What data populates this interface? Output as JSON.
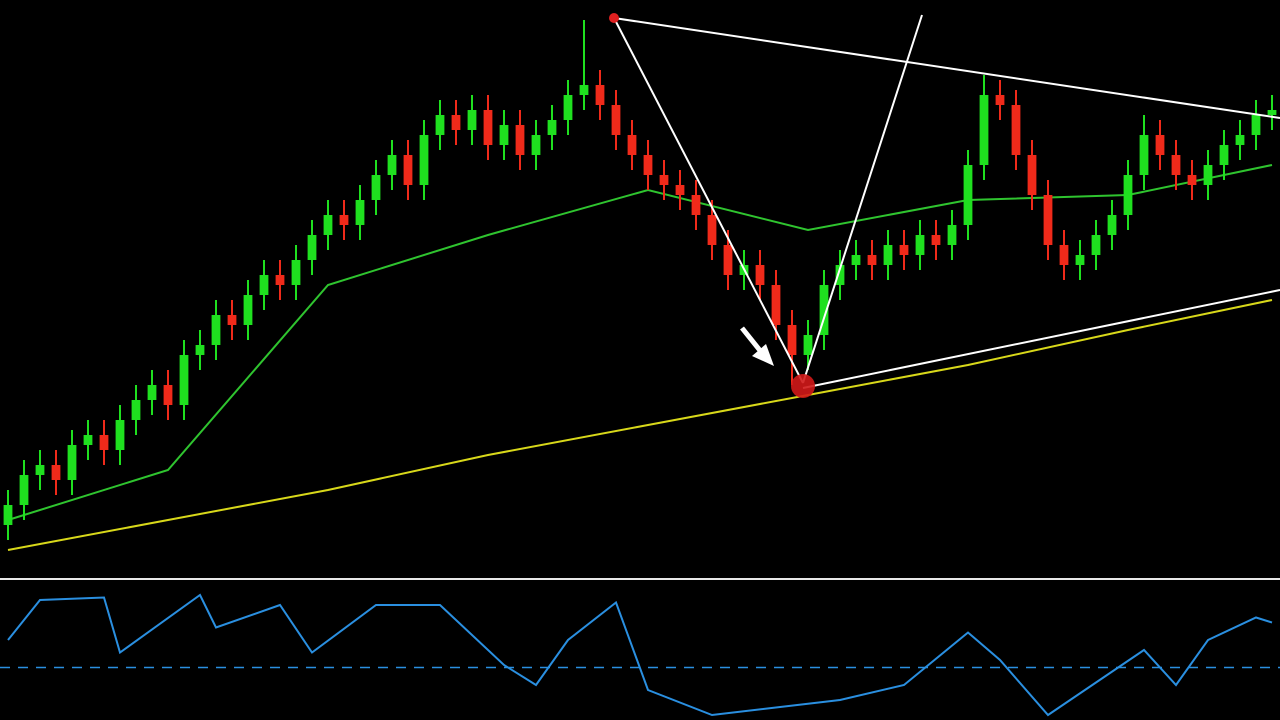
{
  "chart_data": [
    {
      "type": "candlestick",
      "xlim": [
        -0.5,
        79.5
      ],
      "ylim": [
        0,
        115
      ],
      "up_color": "#1fe01f",
      "down_color": "#f02a1a",
      "open": [
        10,
        14,
        20,
        22,
        19,
        26,
        28,
        25,
        31,
        35,
        38,
        34,
        44,
        46,
        52,
        50,
        56,
        60,
        58,
        63,
        68,
        72,
        70,
        75,
        80,
        84,
        78,
        88,
        92,
        89,
        93,
        86,
        90,
        84,
        88,
        91,
        96,
        98,
        94,
        88,
        84,
        80,
        78,
        76,
        72,
        66,
        60,
        62,
        58,
        50,
        44,
        48,
        58,
        62,
        64,
        62,
        66,
        64,
        68,
        66,
        70,
        82,
        96,
        94,
        84,
        76,
        66,
        62,
        64,
        68,
        72,
        80,
        88,
        84,
        80,
        78,
        82,
        86,
        88,
        92
      ],
      "high": [
        17,
        23,
        25,
        25,
        29,
        31,
        31,
        34,
        38,
        41,
        41,
        47,
        49,
        55,
        55,
        59,
        63,
        63,
        66,
        71,
        75,
        75,
        78,
        83,
        87,
        87,
        91,
        95,
        95,
        96,
        96,
        93,
        93,
        91,
        94,
        99,
        111,
        101,
        97,
        91,
        87,
        83,
        81,
        79,
        75,
        69,
        65,
        65,
        61,
        53,
        51,
        61,
        65,
        67,
        67,
        69,
        69,
        71,
        71,
        73,
        85,
        100,
        99,
        97,
        87,
        79,
        69,
        67,
        71,
        75,
        83,
        92,
        91,
        87,
        83,
        85,
        89,
        91,
        95,
        96
      ],
      "low": [
        7,
        11,
        17,
        16,
        16,
        23,
        22,
        22,
        28,
        32,
        31,
        31,
        41,
        43,
        47,
        47,
        53,
        55,
        55,
        60,
        65,
        67,
        67,
        72,
        77,
        75,
        75,
        85,
        86,
        86,
        83,
        83,
        81,
        81,
        85,
        88,
        93,
        91,
        85,
        81,
        77,
        75,
        73,
        69,
        63,
        57,
        57,
        55,
        47,
        38,
        41,
        45,
        55,
        59,
        59,
        59,
        61,
        61,
        63,
        63,
        67,
        79,
        91,
        81,
        73,
        63,
        59,
        59,
        61,
        65,
        69,
        77,
        81,
        77,
        75,
        75,
        79,
        83,
        85,
        89
      ],
      "close": [
        14,
        20,
        22,
        19,
        26,
        28,
        25,
        31,
        35,
        38,
        34,
        44,
        46,
        52,
        50,
        56,
        60,
        58,
        63,
        68,
        72,
        70,
        75,
        80,
        84,
        78,
        88,
        92,
        89,
        93,
        86,
        90,
        84,
        88,
        91,
        96,
        98,
        94,
        88,
        84,
        80,
        78,
        76,
        72,
        66,
        60,
        62,
        58,
        50,
        44,
        48,
        58,
        62,
        64,
        62,
        66,
        64,
        68,
        66,
        70,
        82,
        96,
        94,
        84,
        76,
        66,
        62,
        64,
        68,
        72,
        80,
        88,
        84,
        80,
        78,
        82,
        86,
        88,
        92,
        93
      ],
      "series": [
        {
          "color": "#2fc42f",
          "x": [
            0,
            10,
            20,
            30,
            40,
            50,
            60,
            70,
            79
          ],
          "values": [
            11,
            21,
            58,
            68,
            77,
            69,
            75,
            76,
            82
          ]
        },
        {
          "color": "#d8d81a",
          "x": [
            0,
            10,
            20,
            30,
            40,
            50,
            60,
            70,
            79
          ],
          "values": [
            5,
            11,
            17,
            24,
            30,
            36,
            42,
            49,
            55
          ]
        }
      ]
    },
    {
      "type": "line",
      "xlim": [
        -0.5,
        79.5
      ],
      "ylim": [
        0,
        100
      ],
      "level": 38,
      "color": "#2a8fe0",
      "x": [
        0,
        2,
        6,
        7,
        12,
        13,
        17,
        19,
        23,
        27,
        31,
        33,
        35,
        38,
        40,
        44,
        52,
        56,
        60,
        62,
        65,
        71,
        73,
        75,
        78,
        79
      ],
      "values": [
        60,
        92,
        94,
        50,
        96,
        70,
        88,
        50,
        88,
        88,
        40,
        24,
        60,
        90,
        20,
        0,
        12,
        24,
        66,
        44,
        0,
        52,
        24,
        60,
        78,
        74
      ]
    }
  ]
}
